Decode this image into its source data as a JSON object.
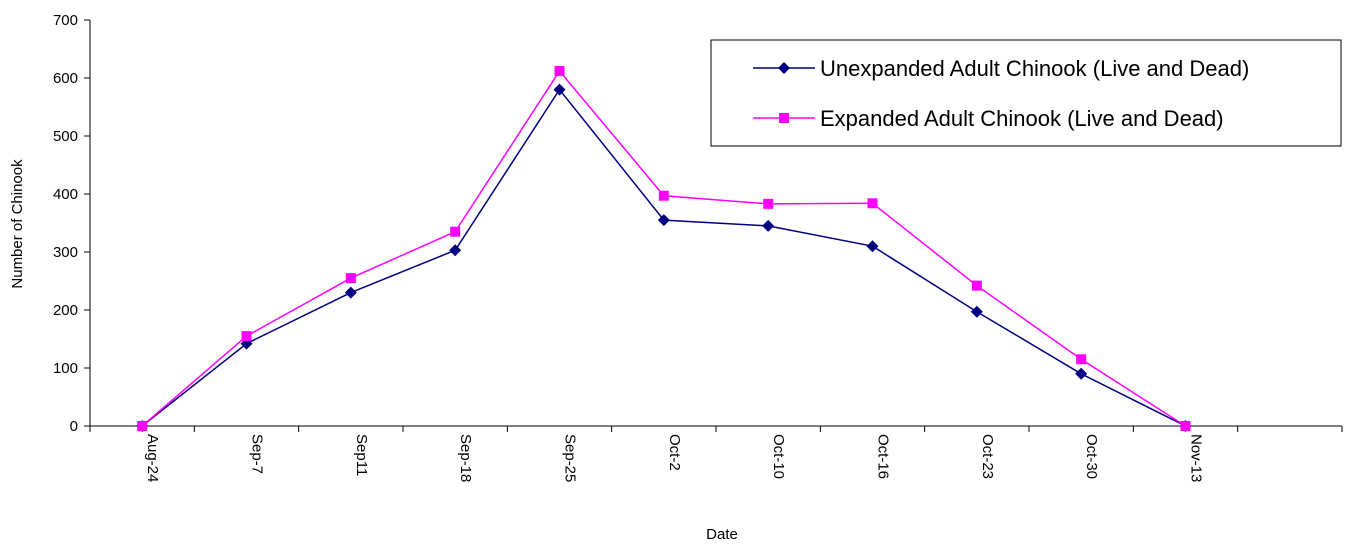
{
  "chart_data": {
    "type": "line",
    "title": "",
    "xlabel": "Date",
    "ylabel": "Number of Chinook",
    "categories": [
      "Aug-24",
      "Sep-7",
      "Sep11",
      "Sep-18",
      "Sep-25",
      "Oct-2",
      "Oct-10",
      "Oct-16",
      "Oct-23",
      "Oct-30",
      "Nov-13"
    ],
    "ylim": [
      0,
      700
    ],
    "yticks": [
      "0",
      "100",
      "200",
      "300",
      "400",
      "500",
      "600",
      "700"
    ],
    "grid": false,
    "legend_position": "top-right",
    "series": [
      {
        "name": "Unexpanded Adult Chinook (Live and Dead)",
        "color": "#000080",
        "marker": "diamond",
        "values": [
          0,
          142,
          230,
          303,
          580,
          355,
          345,
          310,
          197,
          90,
          0
        ]
      },
      {
        "name": "Expanded Adult Chinook (Live and Dead)",
        "color": "#FF00FF",
        "marker": "square",
        "values": [
          0,
          155,
          255,
          335,
          612,
          397,
          383,
          384,
          242,
          115,
          0
        ]
      }
    ]
  }
}
